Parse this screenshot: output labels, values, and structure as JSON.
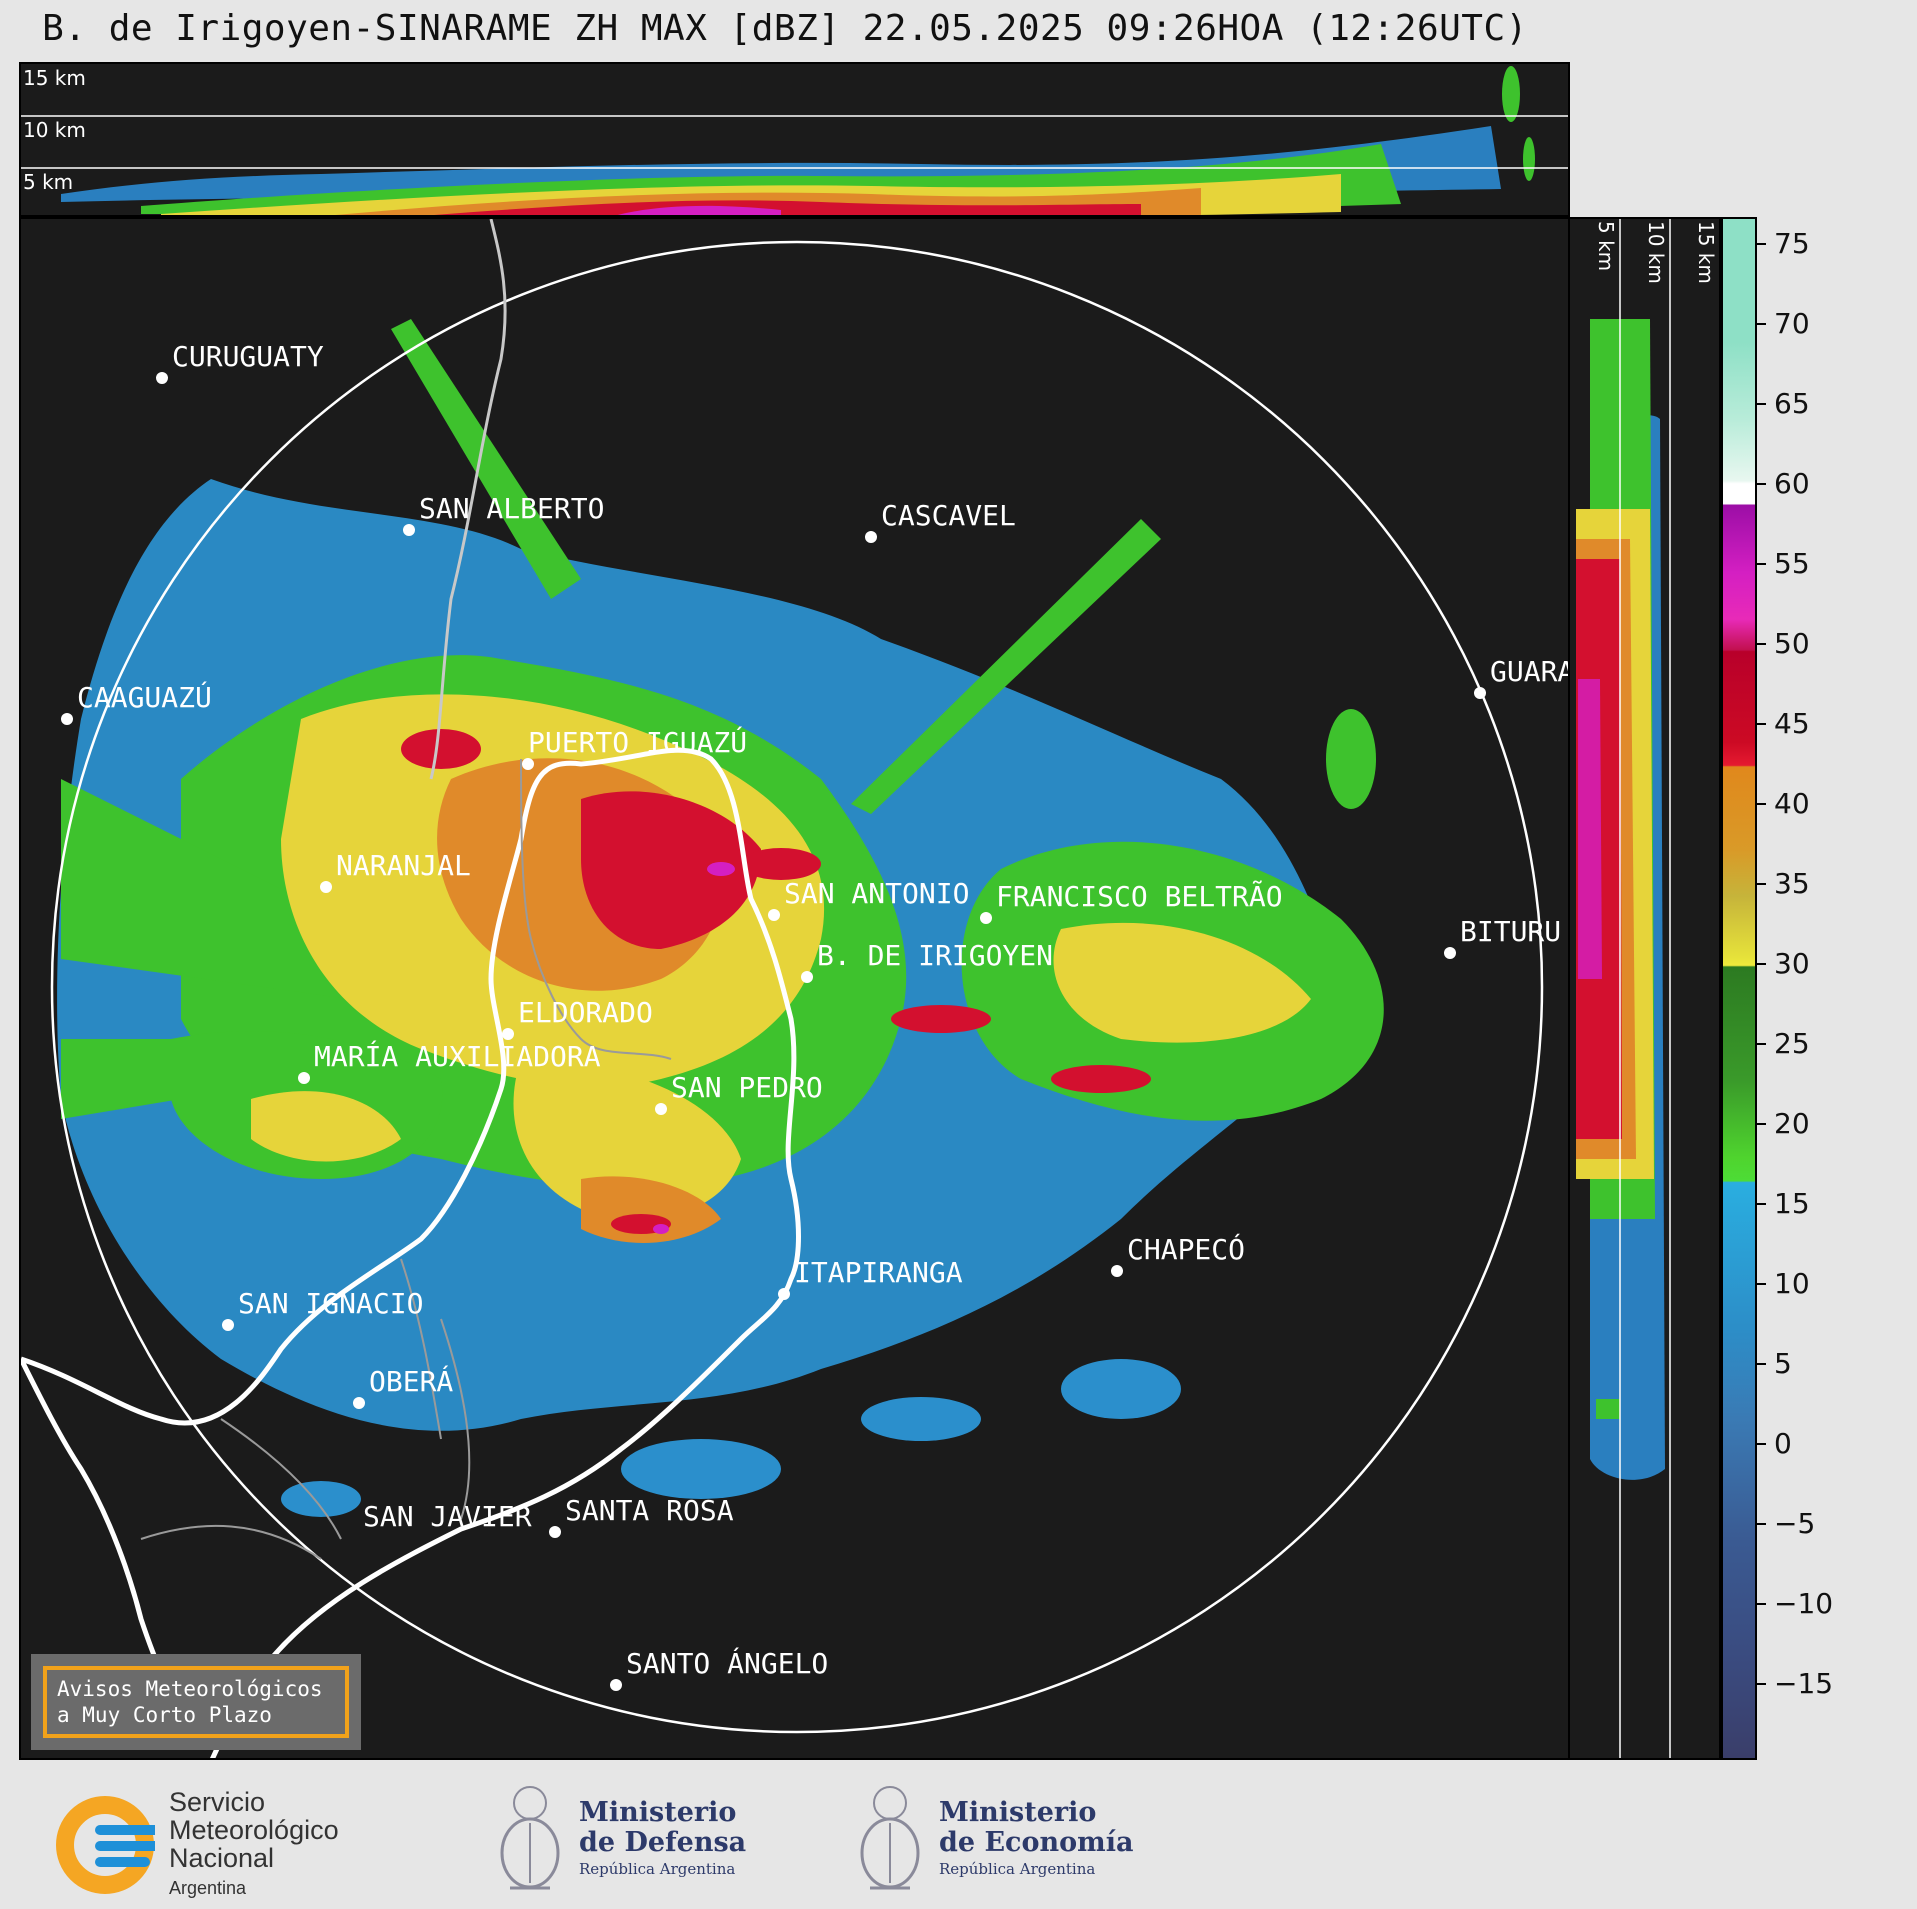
{
  "title": "B. de Irigoyen-SINARAME ZH MAX [dBZ] 22.05.2025 09:26HOA (12:26UTC)",
  "top_panel": {
    "height_labels": [
      "15 km",
      "10 km",
      "5 km"
    ]
  },
  "right_panel": {
    "height_labels": [
      "5 km",
      "10 km",
      "15 km"
    ]
  },
  "colorbar": {
    "unit": "dBZ",
    "ticks": [
      "75",
      "70",
      "65",
      "60",
      "55",
      "50",
      "45",
      "40",
      "35",
      "30",
      "25",
      "20",
      "15",
      "10",
      "5",
      "0",
      "−5",
      "−10",
      "−15"
    ]
  },
  "cities": [
    "CURUGUATY",
    "SAN ALBERTO",
    "CASCAVEL",
    "CAAGUAZÚ",
    "GUARA",
    "PUERTO IGUAZÚ",
    "NARANJAL",
    "SAN ANTONIO",
    "FRANCISCO BELTRÃO",
    "BITURU",
    "B. DE IRIGOYEN",
    "ELDORADO",
    "MARÍA AUXILIADORA",
    "SAN PEDRO",
    "CHAPECÓ",
    "ITAPIRANGA",
    "SAN IGNACIO",
    "OBERÁ",
    "SAN JAVIER",
    "SANTA ROSA",
    "SANTO ÁNGELO"
  ],
  "legend": {
    "line1": "Avisos Meteorológicos",
    "line2": "a Muy Corto Plazo"
  },
  "footer": {
    "smn": {
      "l1": "Servicio",
      "l2": "Meteorológico",
      "l3": "Nacional",
      "l4": "Argentina"
    },
    "defensa": {
      "l1": "Ministerio",
      "l2": "de Defensa",
      "l3": "República Argentina"
    },
    "economia": {
      "l1": "Ministerio",
      "l2": "de Economía",
      "l3": "República Argentina"
    }
  }
}
